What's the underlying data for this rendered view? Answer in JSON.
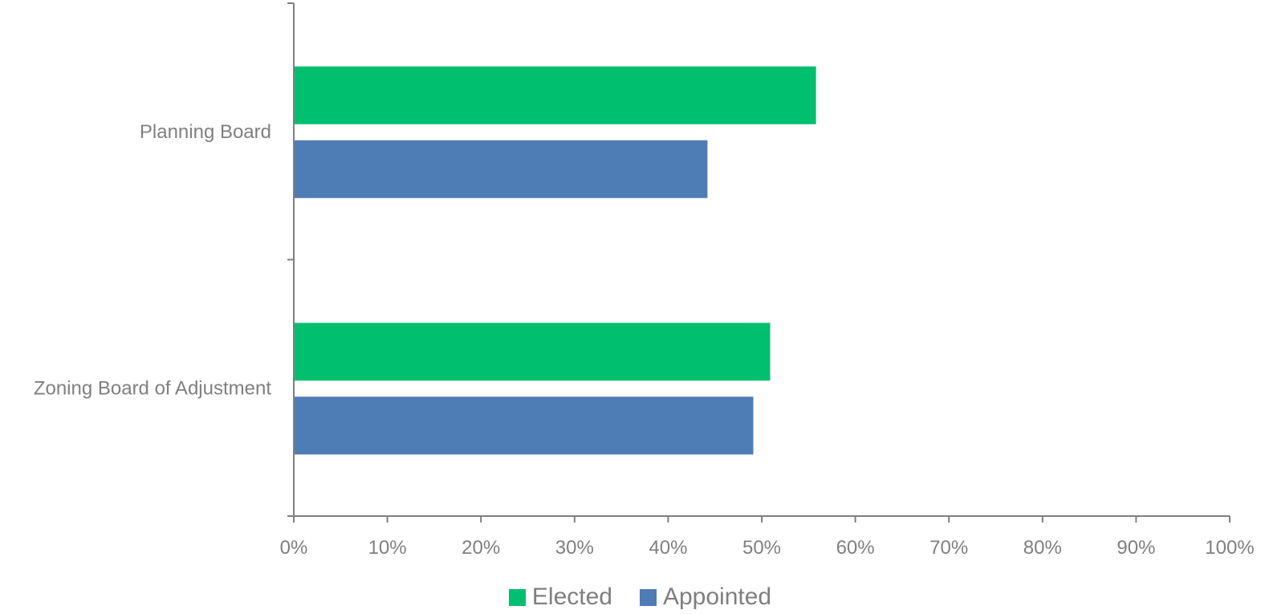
{
  "chart_data": {
    "type": "bar",
    "orientation": "horizontal",
    "categories": [
      "Planning Board",
      "Zoning Board of Adjustment"
    ],
    "series": [
      {
        "name": "Elected",
        "values": [
          55.8,
          50.9
        ],
        "color": "#00bf6f"
      },
      {
        "name": "Appointed",
        "values": [
          44.2,
          49.1
        ],
        "color": "#4e7cb5"
      }
    ],
    "xlim": [
      0,
      100
    ],
    "x_ticks": [
      "0%",
      "10%",
      "20%",
      "30%",
      "40%",
      "50%",
      "60%",
      "70%",
      "80%",
      "90%",
      "100%"
    ],
    "xlabel": "",
    "ylabel": "",
    "title": "",
    "legend_position": "bottom",
    "grid": false
  },
  "legend": {
    "items": [
      {
        "label": "Elected",
        "color": "#00bf6f"
      },
      {
        "label": "Appointed",
        "color": "#4e7cb5"
      }
    ]
  },
  "colors": {
    "axis": "#7f7f7f",
    "text": "#7f7f7f"
  }
}
